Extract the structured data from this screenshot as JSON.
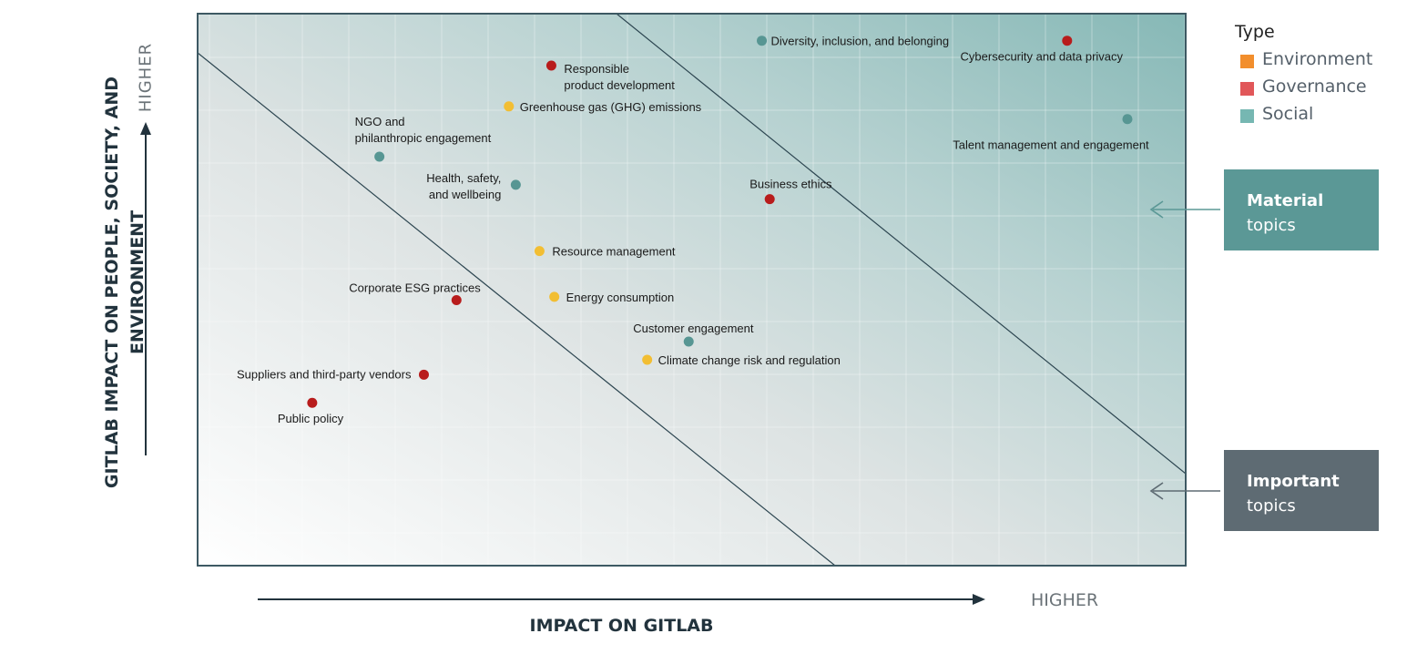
{
  "chart_data": {
    "type": "scatter",
    "xlabel": "IMPACT ON GITLAB",
    "ylabel": "GITLAB IMPACT ON PEOPLE, SOCIETY, AND ENVIRONMENT",
    "x_axis_end_label": "HIGHER",
    "y_axis_end_label": "HIGHER",
    "xlim": [
      0,
      100
    ],
    "ylim": [
      0,
      100
    ],
    "legend": {
      "title": "Type",
      "items": [
        {
          "name": "Environment",
          "color": "#f28e2c"
        },
        {
          "name": "Governance",
          "color": "#e15759"
        },
        {
          "name": "Social",
          "color": "#76b7b2"
        }
      ]
    },
    "point_colors": {
      "Environment": "#f2be33",
      "Governance": "#b81c1c",
      "Social": "#579693"
    },
    "points": [
      {
        "label": "Responsible product development",
        "lines": [
          "Responsible",
          "product development"
        ],
        "type": "Governance",
        "x": 35.8,
        "y": 90.6
      },
      {
        "label": "Diversity, inclusion, and belonging",
        "lines": [
          "Diversity, inclusion, and belonging"
        ],
        "type": "Social",
        "x": 57.1,
        "y": 95.1
      },
      {
        "label": "Cybersecurity and data privacy",
        "lines": [
          "Cybersecurity and data privacy"
        ],
        "type": "Governance",
        "x": 88.0,
        "y": 95.1
      },
      {
        "label": "Greenhouse gas (GHG) emissions",
        "lines": [
          "Greenhouse gas  (GHG) emissions"
        ],
        "type": "Environment",
        "x": 31.5,
        "y": 83.2
      },
      {
        "label": "NGO and philanthropic engagement",
        "lines": [
          "NGO and",
          "philanthropic engagement"
        ],
        "type": "Social",
        "x": 18.4,
        "y": 74.1
      },
      {
        "label": "Talent management and engagement",
        "lines": [
          "Talent management and engagement"
        ],
        "type": "Social",
        "x": 94.1,
        "y": 80.9
      },
      {
        "label": "Health, safety, and wellbeing",
        "lines": [
          "Health, safety,",
          "and wellbeing"
        ],
        "type": "Social",
        "x": 32.2,
        "y": 69.0
      },
      {
        "label": "Business ethics",
        "lines": [
          "Business ethics"
        ],
        "type": "Governance",
        "x": 57.9,
        "y": 66.4
      },
      {
        "label": "Resource management",
        "lines": [
          "Resource management"
        ],
        "type": "Environment",
        "x": 34.6,
        "y": 57.0
      },
      {
        "label": "Corporate ESG practices",
        "lines": [
          "Corporate ESG practices"
        ],
        "type": "Governance",
        "x": 26.2,
        "y": 48.1
      },
      {
        "label": "Energy consumption",
        "lines": [
          "Energy consumption"
        ],
        "type": "Environment",
        "x": 36.1,
        "y": 48.7
      },
      {
        "label": "Customer engagement",
        "lines": [
          "Customer engagement"
        ],
        "type": "Social",
        "x": 49.7,
        "y": 40.6
      },
      {
        "label": "Climate change risk and regulation",
        "lines": [
          "Climate change risk and regulation"
        ],
        "type": "Environment",
        "x": 45.5,
        "y": 37.3
      },
      {
        "label": "Suppliers and third-party vendors",
        "lines": [
          "Suppliers and third-party vendors"
        ],
        "type": "Governance",
        "x": 22.9,
        "y": 34.6
      },
      {
        "label": "Public policy",
        "lines": [
          "Public policy"
        ],
        "type": "Governance",
        "x": 11.6,
        "y": 29.5
      }
    ],
    "zones": [
      {
        "name": "Material",
        "sub": "topics",
        "color": "#5b9896"
      },
      {
        "name": "Important",
        "sub": "topics",
        "color": "#5e6b73"
      }
    ]
  }
}
